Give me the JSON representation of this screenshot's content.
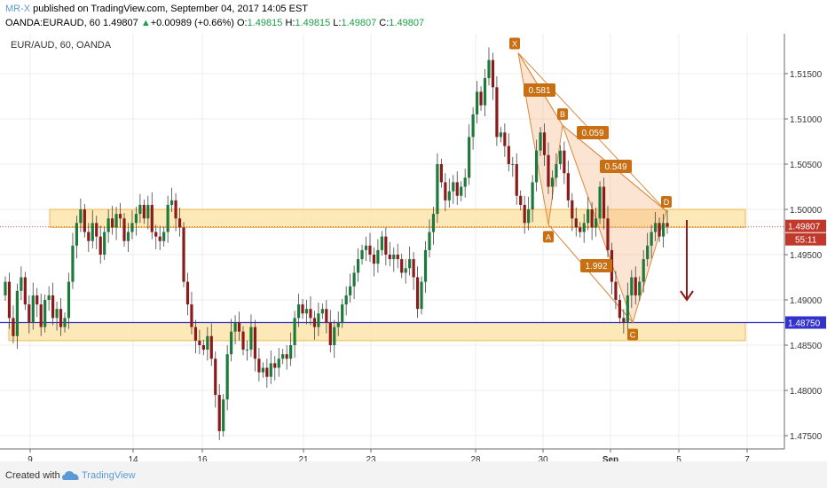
{
  "header": {
    "author": "MR-X",
    "published": "published on TradingView.com, September 04, 2017 14:05 EST",
    "symbol_line": "OANDA:EURAUD, 60  1.49807",
    "change_arrow": "▲",
    "change": "+0.00989 (+0.66%)",
    "o_label": "O:",
    "o_value": "1.49815",
    "h_label": "H:",
    "h_value": "1.49815",
    "l_label": "L:",
    "l_value": "1.49807",
    "c_label": "C:",
    "c_value": "1.49807"
  },
  "chart_data": {
    "type": "candlestick",
    "title": "EUR/AUD, 60, OANDA",
    "x_tick_labels": [
      "9",
      "14",
      "16",
      "21",
      "23",
      "28",
      "30",
      "Sep",
      "5",
      "7"
    ],
    "y_tick_labels": [
      "1.51500",
      "1.51000",
      "1.50500",
      "1.50000",
      "1.49500",
      "1.49000",
      "1.48500",
      "1.48000",
      "1.47500"
    ],
    "ylim": [
      1.47,
      1.52
    ],
    "last_price": "1.49807",
    "countdown": "55:11",
    "hline_price": "1.48750",
    "zones": [
      {
        "from": 1.498,
        "to": 1.5
      },
      {
        "from": 1.4855,
        "to": 1.4875
      }
    ],
    "pattern": {
      "points": [
        {
          "label": "X",
          "price": 1.5173
        },
        {
          "label": "A",
          "price": 1.4983
        },
        {
          "label": "B",
          "price": 1.5093
        },
        {
          "label": "C",
          "price": 1.4875
        },
        {
          "label": "D",
          "price": 1.4998
        }
      ],
      "ratios": [
        "0.581",
        "0.059",
        "0.549",
        "1.992"
      ]
    },
    "close_series": [
      1.492,
      1.488,
      1.486,
      1.491,
      1.4925,
      1.4895,
      1.4875,
      1.4905,
      1.4895,
      1.487,
      1.49,
      1.4905,
      1.488,
      1.489,
      1.487,
      1.488,
      1.492,
      1.496,
      1.4985,
      1.5,
      1.4975,
      1.4965,
      1.4985,
      1.497,
      1.495,
      1.4975,
      1.499,
      1.498,
      1.4995,
      1.499,
      1.4965,
      1.4975,
      1.4985,
      1.4995,
      1.5005,
      1.499,
      1.5005,
      1.4975,
      1.497,
      1.4965,
      1.4975,
      1.5005,
      1.501,
      1.499,
      1.498,
      1.492,
      1.4895,
      1.487,
      1.4855,
      1.485,
      1.4845,
      1.486,
      1.4835,
      1.4795,
      1.4755,
      1.479,
      1.484,
      1.4865,
      1.4875,
      1.4865,
      1.4845,
      1.4845,
      1.487,
      1.4835,
      1.482,
      1.4825,
      1.4815,
      1.483,
      1.4825,
      1.4835,
      1.484,
      1.4835,
      1.485,
      1.488,
      1.4895,
      1.4885,
      1.489,
      1.488,
      1.487,
      1.4885,
      1.489,
      1.4875,
      1.485,
      1.487,
      1.4875,
      1.4895,
      1.4905,
      1.4915,
      1.493,
      1.4945,
      1.4955,
      1.496,
      1.495,
      1.494,
      1.4955,
      1.497,
      1.495,
      1.4945,
      1.495,
      1.4945,
      1.493,
      1.4935,
      1.4945,
      1.4925,
      1.489,
      1.492,
      1.4955,
      1.4975,
      1.4995,
      1.505,
      1.503,
      1.501,
      1.502,
      1.503,
      1.5015,
      1.5025,
      1.5035,
      1.508,
      1.5105,
      1.513,
      1.5115,
      1.5145,
      1.5165,
      1.5135,
      1.508,
      1.5085,
      1.507,
      1.505,
      1.505,
      1.5015,
      1.5005,
      1.4985,
      1.5,
      1.503,
      1.5065,
      1.5085,
      1.506,
      1.5025,
      1.5035,
      1.505,
      1.5065,
      1.504,
      1.501,
      1.499,
      1.498,
      1.4975,
      1.4985,
      1.5,
      1.498,
      1.499,
      1.5025,
      1.499,
      1.4955,
      1.492,
      1.49,
      1.488,
      1.4875,
      1.4905,
      1.4925,
      1.4905,
      1.492,
      1.4945,
      1.496,
      1.4975,
      1.4985,
      1.497,
      1.4985,
      1.4981
    ]
  },
  "footer": {
    "created_with": "Created with",
    "logo_icon": "tradingview-cloud-icon",
    "brand": "TradingView"
  }
}
